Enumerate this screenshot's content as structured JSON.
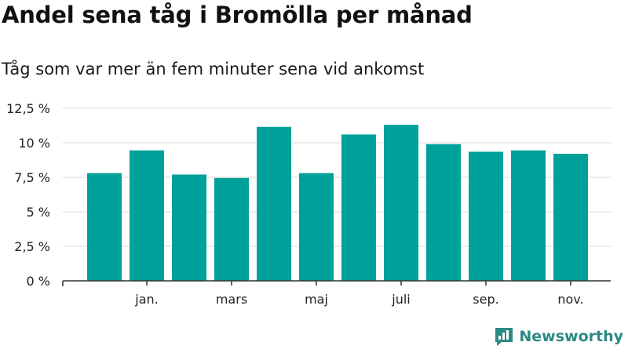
{
  "title": "Andel sena tåg i Bromölla per månad",
  "subtitle": "Tåg som var mer än fem minuter sena vid ankomst",
  "brand": {
    "name": "Newsworthy",
    "icon": "newsworthy-logo-icon"
  },
  "colors": {
    "bar": "#00a19a",
    "grid": "#d9d9d9",
    "axis": "#333333",
    "brand": "#2a8a86"
  },
  "chart_data": {
    "type": "bar",
    "title": "Andel sena tåg i Bromölla per månad",
    "subtitle": "Tåg som var mer än fem minuter sena vid ankomst",
    "xlabel": "",
    "ylabel": "",
    "ylim": [
      0,
      12.5
    ],
    "yticks": [
      {
        "value": 0,
        "label": "0 %"
      },
      {
        "value": 2.5,
        "label": "2,5 %"
      },
      {
        "value": 5,
        "label": "5 %"
      },
      {
        "value": 7.5,
        "label": "7,5 %"
      },
      {
        "value": 10,
        "label": "10 %"
      },
      {
        "value": 12.5,
        "label": "12,5 %"
      }
    ],
    "x_tick_labels": [
      {
        "label": "jan.",
        "position": 1
      },
      {
        "label": "mars",
        "position": 3
      },
      {
        "label": "maj",
        "position": 5
      },
      {
        "label": "juli",
        "position": 7
      },
      {
        "label": "sep.",
        "position": 9
      },
      {
        "label": "nov.",
        "position": 11
      }
    ],
    "categories": [
      0,
      1,
      2,
      3,
      4,
      5,
      6,
      7,
      8,
      9,
      10,
      11
    ],
    "values": [
      7.8,
      9.45,
      7.7,
      7.45,
      11.15,
      7.8,
      10.6,
      11.3,
      9.9,
      9.35,
      9.45,
      9.2
    ],
    "grid": true
  }
}
